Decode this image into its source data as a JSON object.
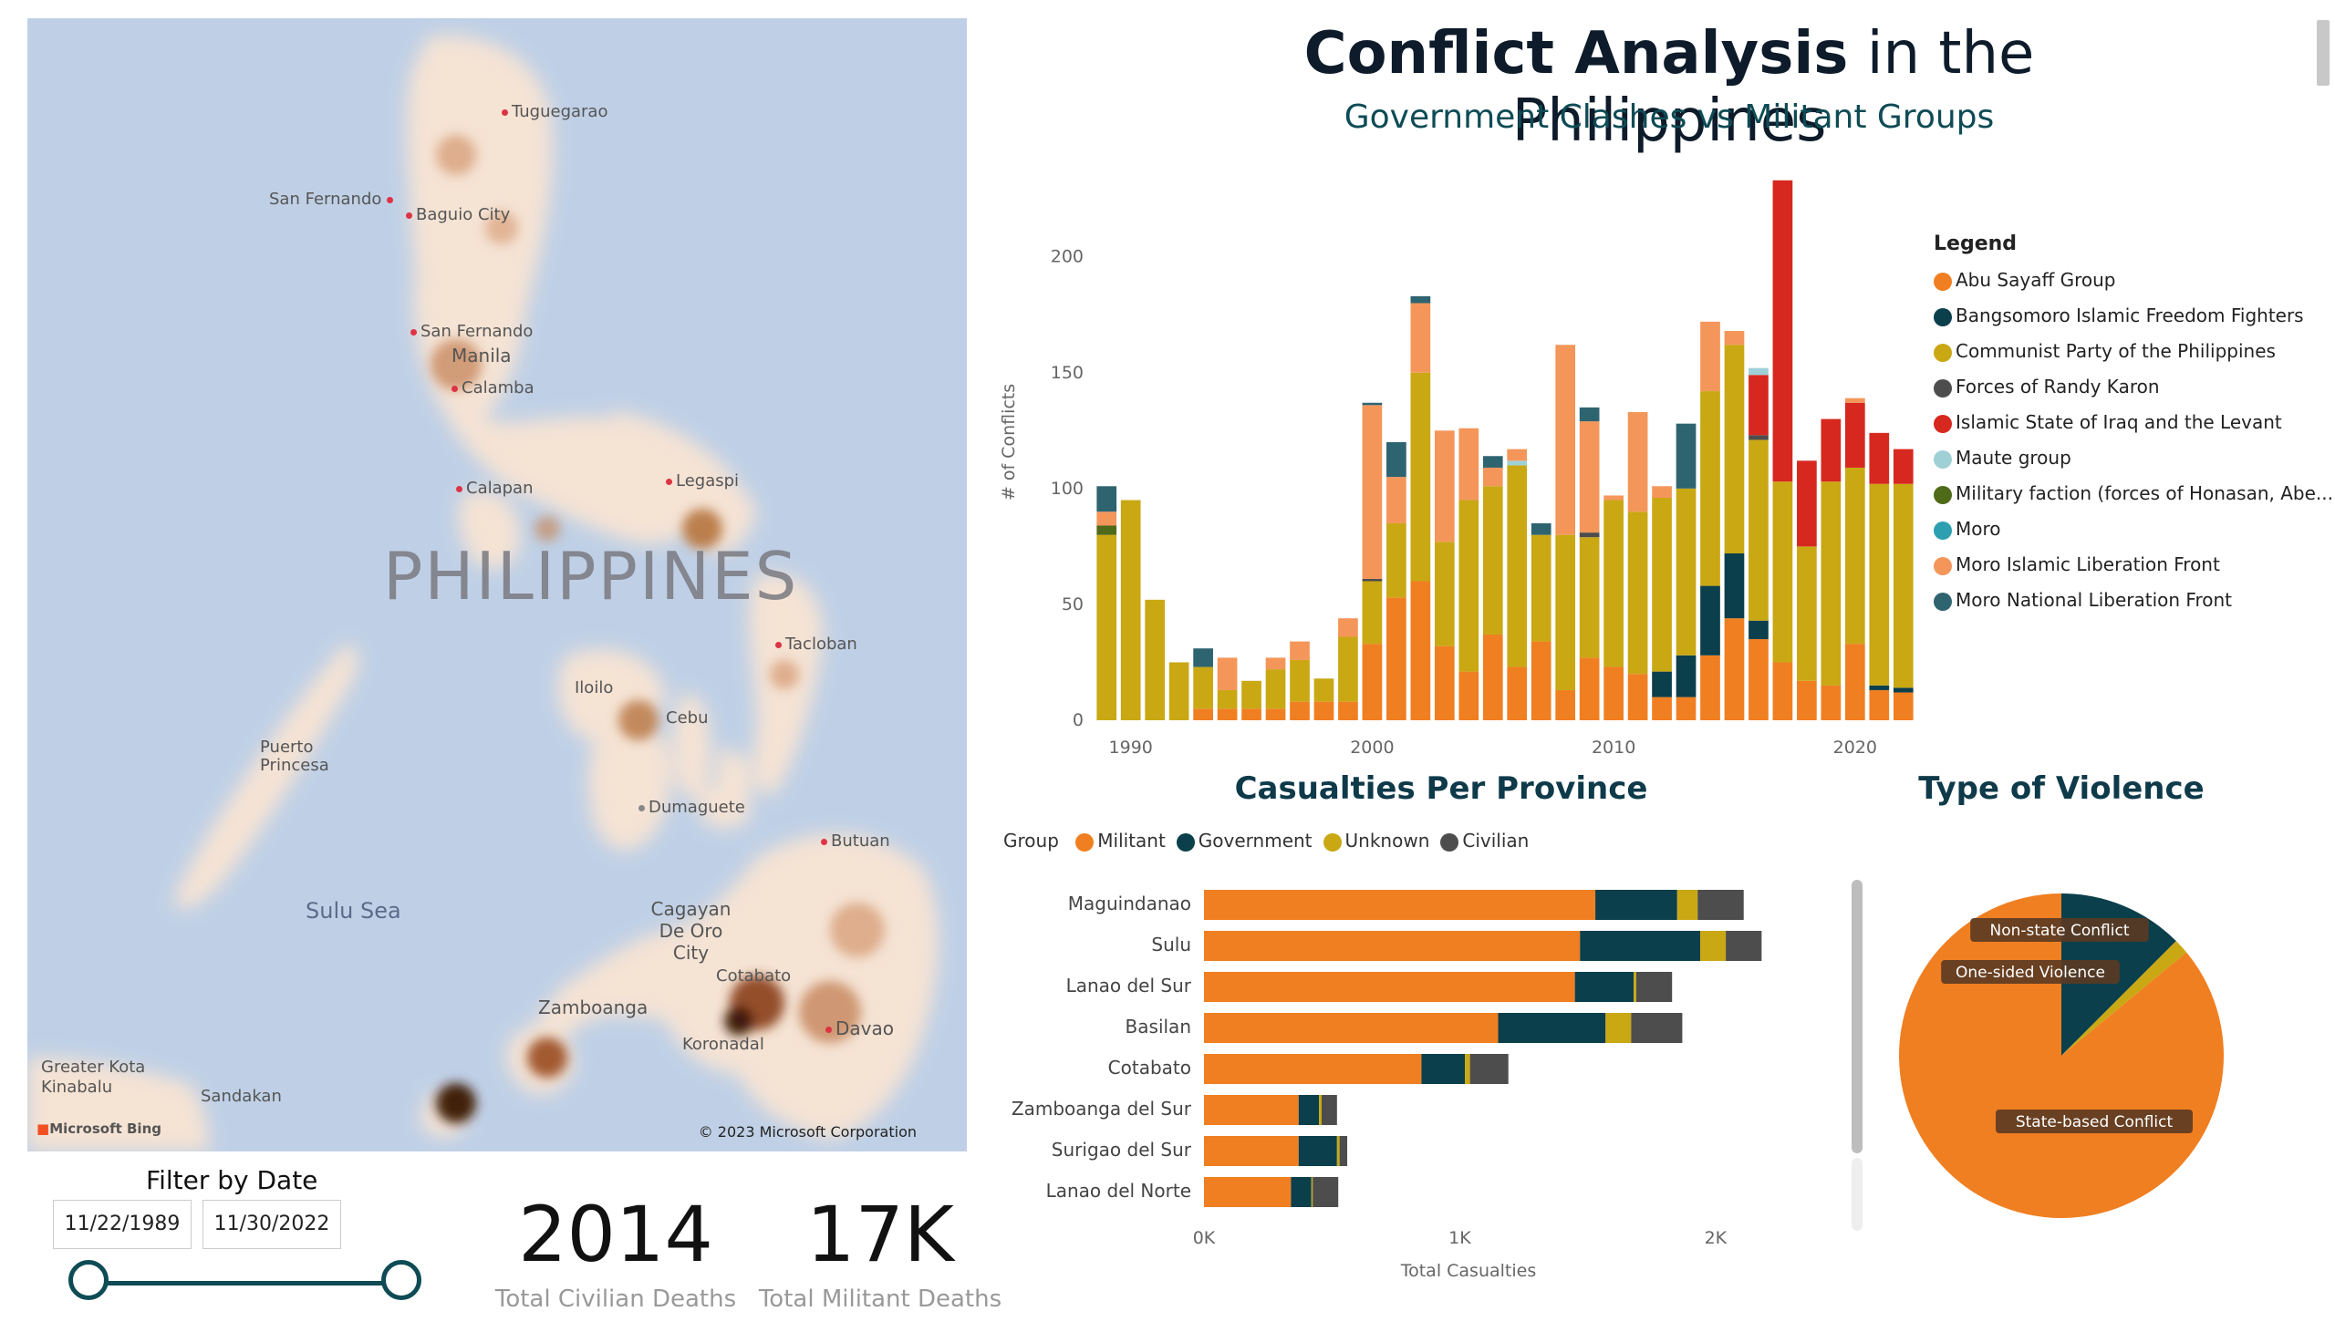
{
  "map": {
    "country_label": "PHILIPPINES",
    "sea_label": "Sulu Sea",
    "cities": [
      {
        "name": "Tuguegarao"
      },
      {
        "name": "San Fernando"
      },
      {
        "name": "Baguio City"
      },
      {
        "name": "San Fernando"
      },
      {
        "name": "Manila"
      },
      {
        "name": "Calamba"
      },
      {
        "name": "Legaspi"
      },
      {
        "name": "Calapan"
      },
      {
        "name": "Tacloban"
      },
      {
        "name": "Iloilo"
      },
      {
        "name": "Cebu"
      },
      {
        "name": "Puerto Princesa"
      },
      {
        "name": "Dumaguete"
      },
      {
        "name": "Butuan"
      },
      {
        "name": "Cagayan De Oro City"
      },
      {
        "name": "Cotabato"
      },
      {
        "name": "Zamboanga"
      },
      {
        "name": "Davao"
      },
      {
        "name": "Koronadal"
      },
      {
        "name": "Greater Kota Kinabalu"
      },
      {
        "name": "Sandakan"
      }
    ],
    "logo": "Microsoft Bing",
    "copyright": "© 2023 Microsoft Corporation"
  },
  "header": {
    "title_bold": "Conflict Analysis",
    "title_rest": " in the Philippines",
    "subtitle": "Government Clashes vs Militant Groups"
  },
  "filter": {
    "title": "Filter by Date",
    "start": "11/22/1989",
    "end": "11/30/2022"
  },
  "kpis": [
    {
      "value": "2014",
      "label": "Total Civilian Deaths"
    },
    {
      "value": "17K",
      "label": "Total Militant Deaths"
    }
  ],
  "sections": {
    "province_title": "Casualties Per Province",
    "violence_title": "Type of Violence"
  },
  "colors": {
    "Abu Sayaff Group": "#f07f22",
    "Bangsomoro Islamic Freedom Fighters": "#0b3f4c",
    "Communist Party of the Philippines": "#c9a814",
    "Forces of Randy Karon": "#4d4d4d",
    "Islamic State of Iraq and the Levant": "#d7281f",
    "Maute group": "#9fd0d6",
    "Military faction (forces of Honasan, Abe...": "#4f6b1a",
    "Moro": "#2ca0b0",
    "Moro Islamic Liberation Front": "#f4965a",
    "Moro National Liberation Front": "#2e6470"
  },
  "chart_data": [
    {
      "type": "bar",
      "stacked": true,
      "ylabel": "# of Conflicts",
      "ylim": [
        0,
        240
      ],
      "yticks": [
        0,
        50,
        100,
        150,
        200
      ],
      "xticks": [
        1990,
        2000,
        2010,
        2020
      ],
      "legend_title": "Legend",
      "legend_position": "right",
      "categories": [
        1989,
        1990,
        1991,
        1992,
        1993,
        1994,
        1995,
        1996,
        1997,
        1998,
        1999,
        2000,
        2001,
        2002,
        2003,
        2004,
        2005,
        2006,
        2007,
        2008,
        2009,
        2010,
        2011,
        2012,
        2013,
        2014,
        2015,
        2016,
        2017,
        2018,
        2019,
        2020,
        2021,
        2022
      ],
      "series": [
        {
          "name": "Abu Sayaff Group",
          "values": [
            0,
            0,
            0,
            0,
            5,
            5,
            5,
            5,
            8,
            8,
            8,
            33,
            53,
            60,
            32,
            21,
            37,
            23,
            34,
            13,
            27,
            23,
            20,
            10,
            10,
            28,
            44,
            35,
            25,
            17,
            15,
            33,
            13,
            12
          ]
        },
        {
          "name": "Bangsomoro Islamic Freedom Fighters",
          "values": [
            0,
            0,
            0,
            0,
            0,
            0,
            0,
            0,
            0,
            0,
            0,
            0,
            0,
            0,
            0,
            0,
            0,
            0,
            0,
            0,
            0,
            0,
            0,
            11,
            18,
            30,
            28,
            8,
            0,
            0,
            0,
            0,
            2,
            2
          ]
        },
        {
          "name": "Communist Party of the Philippines",
          "values": [
            80,
            95,
            52,
            25,
            18,
            8,
            12,
            17,
            18,
            10,
            28,
            27,
            32,
            90,
            45,
            74,
            64,
            87,
            46,
            67,
            52,
            72,
            70,
            75,
            72,
            84,
            90,
            78,
            78,
            58,
            88,
            76,
            87,
            88
          ]
        },
        {
          "name": "Forces of Randy Karon",
          "values": [
            0,
            0,
            0,
            0,
            0,
            0,
            0,
            0,
            0,
            0,
            0,
            1,
            0,
            0,
            0,
            0,
            0,
            0,
            0,
            0,
            2,
            0,
            0,
            0,
            0,
            0,
            0,
            2,
            0,
            0,
            0,
            0,
            0,
            0
          ]
        },
        {
          "name": "Islamic State of Iraq and the Levant",
          "values": [
            0,
            0,
            0,
            0,
            0,
            0,
            0,
            0,
            0,
            0,
            0,
            0,
            0,
            0,
            0,
            0,
            0,
            0,
            0,
            0,
            0,
            0,
            0,
            0,
            0,
            0,
            0,
            26,
            130,
            37,
            27,
            28,
            22,
            15
          ]
        },
        {
          "name": "Maute group",
          "values": [
            0,
            0,
            0,
            0,
            0,
            0,
            0,
            0,
            0,
            0,
            0,
            0,
            0,
            0,
            0,
            0,
            0,
            2,
            0,
            0,
            0,
            0,
            0,
            0,
            0,
            0,
            0,
            3,
            0,
            0,
            0,
            0,
            0,
            0
          ]
        },
        {
          "name": "Military faction (forces of Honasan, Abe...",
          "values": [
            4,
            0,
            0,
            0,
            0,
            0,
            0,
            0,
            0,
            0,
            0,
            0,
            0,
            0,
            0,
            0,
            0,
            0,
            0,
            0,
            0,
            0,
            0,
            0,
            0,
            0,
            0,
            0,
            0,
            0,
            0,
            0,
            0,
            0
          ]
        },
        {
          "name": "Moro",
          "values": [
            0,
            0,
            0,
            0,
            0,
            0,
            0,
            0,
            0,
            0,
            0,
            0,
            0,
            0,
            0,
            0,
            0,
            0,
            0,
            0,
            0,
            0,
            0,
            0,
            0,
            0,
            0,
            0,
            0,
            0,
            0,
            0,
            0,
            0
          ]
        },
        {
          "name": "Moro Islamic Liberation Front",
          "values": [
            6,
            0,
            0,
            0,
            0,
            14,
            0,
            5,
            8,
            0,
            8,
            75,
            20,
            30,
            48,
            31,
            8,
            5,
            0,
            82,
            48,
            2,
            43,
            5,
            0,
            30,
            6,
            0,
            0,
            0,
            0,
            2,
            0,
            0
          ]
        },
        {
          "name": "Moro National Liberation Front",
          "values": [
            11,
            0,
            0,
            0,
            8,
            0,
            0,
            0,
            0,
            0,
            0,
            1,
            15,
            3,
            0,
            0,
            5,
            0,
            5,
            0,
            6,
            0,
            0,
            0,
            28,
            0,
            0,
            0,
            0,
            0,
            0,
            0,
            0,
            0
          ]
        }
      ]
    },
    {
      "type": "bar",
      "orientation": "horizontal",
      "stacked": true,
      "title": "Casualties Per Province",
      "xlabel": "Total Casualties",
      "xlim": [
        0,
        2300
      ],
      "xticks": [
        "0K",
        "1K",
        "2K"
      ],
      "legend_title": "Group",
      "legend_position": "top",
      "categories": [
        "Maguindanao",
        "Sulu",
        "Lanao del Sur",
        "Basilan",
        "Cotabato",
        "Zamboanga del Sur",
        "Surigao del Sur",
        "Lanao del Norte"
      ],
      "series": [
        {
          "name": "Militant",
          "color": "#f07f22",
          "values": [
            1530,
            1470,
            1450,
            1150,
            850,
            370,
            370,
            340
          ]
        },
        {
          "name": "Government",
          "color": "#0b3f4c",
          "values": [
            320,
            470,
            230,
            420,
            170,
            80,
            150,
            80
          ]
        },
        {
          "name": "Unknown",
          "color": "#c9a814",
          "values": [
            80,
            100,
            10,
            100,
            20,
            10,
            10,
            5
          ]
        },
        {
          "name": "Civilian",
          "color": "#4d4d4d",
          "values": [
            180,
            140,
            140,
            200,
            150,
            60,
            30,
            100
          ]
        }
      ]
    },
    {
      "type": "pie",
      "title": "Type of Violence",
      "labels": [
        "State-based Conflict",
        "One-sided Violence",
        "Non-state Conflict"
      ],
      "values": [
        86,
        12.5,
        1.5
      ],
      "colors": [
        "#f07f22",
        "#0b3f4c",
        "#c9a814"
      ]
    }
  ]
}
